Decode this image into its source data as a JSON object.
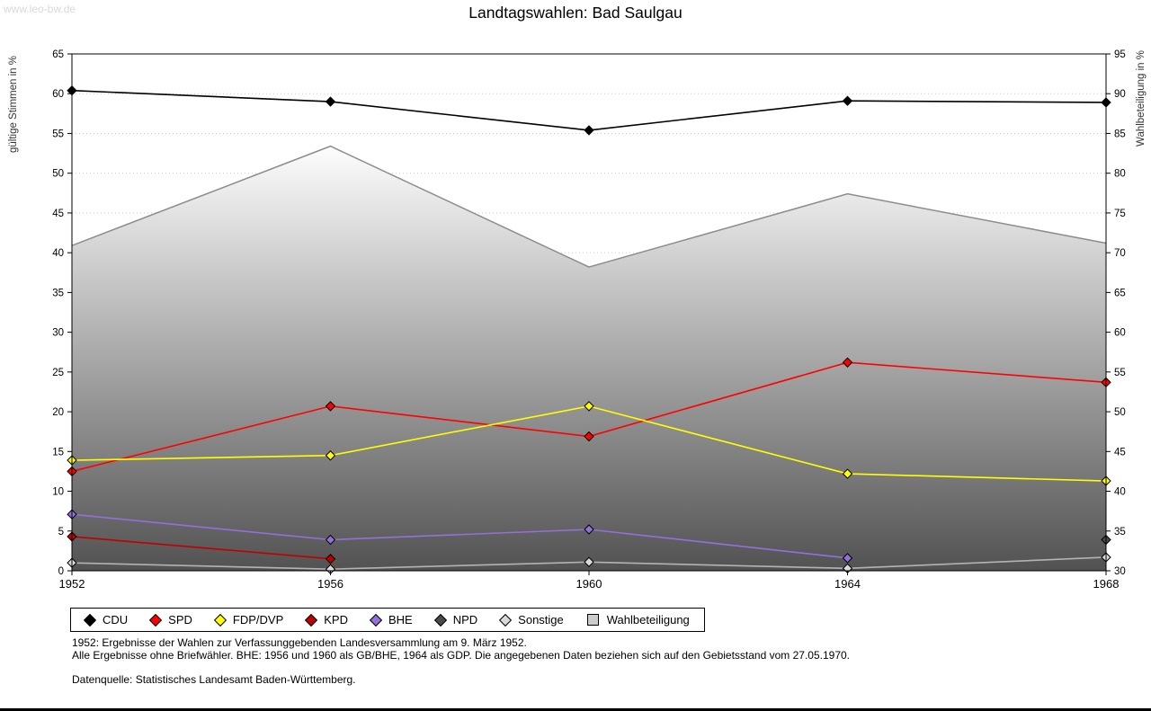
{
  "watermark": "www.leo-bw.de",
  "footnotes": {
    "line1": "1952: Ergebnisse der Wahlen zur Verfassunggebenden Landesversammlung am 9. März 1952.",
    "line2": "Alle Ergebnisse ohne Briefwähler. BHE: 1956 und 1960 als GB/BHE, 1964 als GDP. Die angegebenen Daten beziehen sich auf den Gebietsstand vom 27.05.1970.",
    "source": "Datenquelle: Statistisches Landesamt Baden-Württemberg."
  },
  "chart_data": {
    "type": "line",
    "title": "Landtagswahlen: Bad Saulgau",
    "x": [
      1952,
      1956,
      1960,
      1964,
      1968
    ],
    "left_axis": {
      "label": "gültige Stimmen in %",
      "min": 0,
      "max": 65,
      "step": 5
    },
    "right_axis": {
      "label": "Wahlbeteiligung in %",
      "min": 30,
      "max": 95,
      "step": 5
    },
    "grid": "horizontal-dotted",
    "legend_position": "bottom",
    "series": [
      {
        "name": "CDU",
        "color": "#000000",
        "values": [
          60.4,
          59.0,
          55.4,
          59.1,
          58.9
        ]
      },
      {
        "name": "SPD",
        "color": "#ff0000",
        "values": [
          12.5,
          20.7,
          16.9,
          26.2,
          23.7
        ]
      },
      {
        "name": "FDP/DVP",
        "color": "#ffff00",
        "values": [
          13.9,
          14.5,
          20.7,
          12.2,
          11.3
        ]
      },
      {
        "name": "KPD",
        "color": "#c00000",
        "values": [
          4.3,
          1.5,
          null,
          null,
          null
        ]
      },
      {
        "name": "BHE",
        "color": "#9370db",
        "values": [
          7.1,
          3.9,
          5.2,
          1.6,
          null
        ]
      },
      {
        "name": "NPD",
        "color": "#4a4a4a",
        "values": [
          null,
          null,
          null,
          null,
          3.9
        ]
      },
      {
        "name": "Sonstige",
        "color": "#d9d9d9",
        "line_color": "#b3b3b3",
        "values": [
          1.0,
          0.2,
          1.1,
          0.3,
          1.7
        ]
      }
    ],
    "area_series": {
      "name": "Wahlbeteiligung",
      "axis": "right",
      "values": [
        70.9,
        83.4,
        68.2,
        77.4,
        71.2
      ],
      "fill_top": "#fdfdfd",
      "fill_bottom": "#525252",
      "line_color": "#8c8c8c",
      "legend_color": "#cccccc"
    }
  }
}
